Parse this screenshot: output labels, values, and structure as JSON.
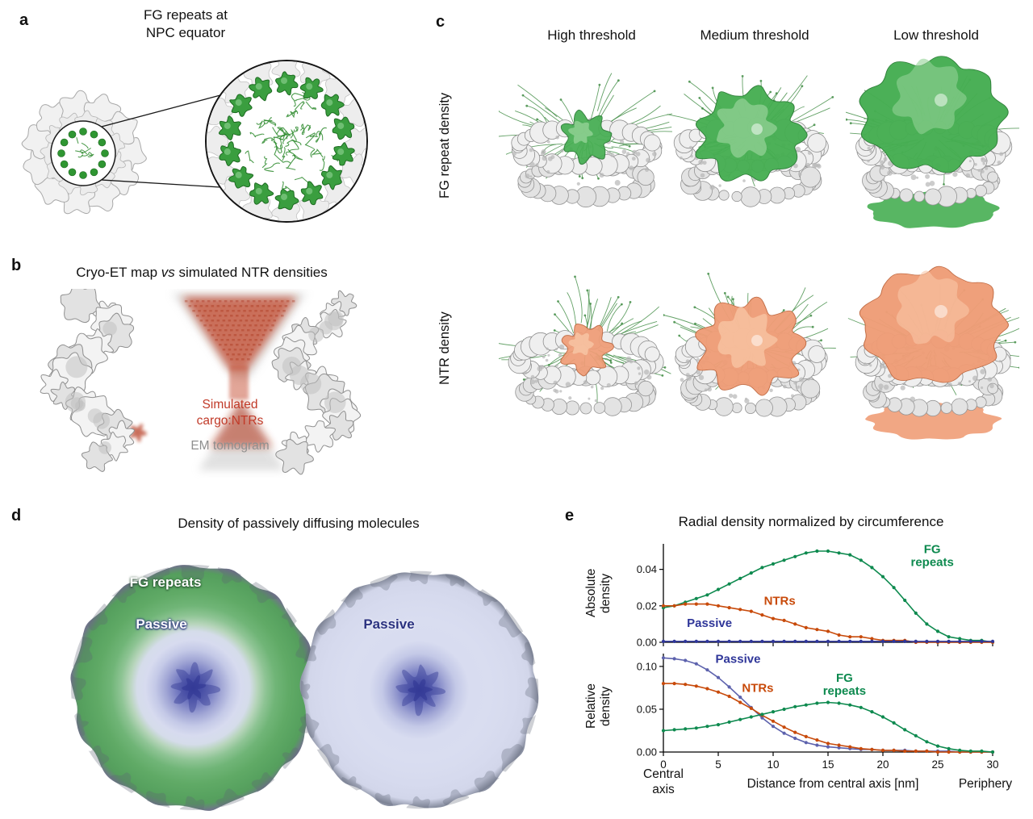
{
  "panel_a": {
    "label": "a",
    "title_line1": "FG repeats at",
    "title_line2": "NPC equator"
  },
  "panel_b": {
    "label": "b",
    "title_pre": "Cryo-ET map ",
    "title_vs": "vs",
    "title_post": " simulated NTR densities",
    "annotation_sim_line1": "Simulated",
    "annotation_sim_line2": "cargo:NTRs",
    "annotation_tomogram": "EM tomogram"
  },
  "panel_c": {
    "label": "c",
    "col_headers": [
      "High threshold",
      "Medium threshold",
      "Low threshold"
    ],
    "row_labels": [
      "FG repeat density",
      "NTR density"
    ]
  },
  "panel_d": {
    "label": "d",
    "title": "Density of passively diffusing molecules",
    "left_disc_label_top": "FG repeats",
    "left_disc_label_center": "Passive",
    "right_disc_label": "Passive"
  },
  "panel_e": {
    "label": "e",
    "title": "Radial density normalized by circumference",
    "ylabel_top_line1": "Absolute",
    "ylabel_top_line2": "density",
    "ylabel_bottom_line1": "Relative",
    "ylabel_bottom_line2": "density",
    "xlabel": "Distance from central axis [nm]",
    "x_origin_label_line1": "Central",
    "x_origin_label_line2": "axis",
    "x_end_label": "Periphery"
  },
  "colors": {
    "fg_green_surface": "#46ae52",
    "fg_green_light": "#93d296",
    "fg_green_dark": "#2a7c35",
    "ntr_orange_surface": "#ef9d77",
    "ntr_orange_light": "#f8c7a6",
    "ntr_orange_dark": "#c06a42",
    "filament_green": "#3c8a40",
    "sim_red": "#c03a1e",
    "tomo_gray": "#9a9a9a",
    "chart_green": "#0e8a4f",
    "chart_red": "#c84a0a",
    "chart_navy": "#2f3699",
    "chart_purple": "#5d62ad",
    "disc_left_stops": [
      [
        0,
        "#3f45a2"
      ],
      [
        0.07,
        "#555cb1"
      ],
      [
        0.15,
        "#7b81c4"
      ],
      [
        0.23,
        "#a3a8d6"
      ],
      [
        0.31,
        "#c4c9e7"
      ],
      [
        0.39,
        "#d7dbef"
      ],
      [
        0.46,
        "#d5dcea"
      ],
      [
        0.52,
        "#b7d5bb"
      ],
      [
        0.59,
        "#8ec494"
      ],
      [
        0.67,
        "#70b577"
      ],
      [
        0.78,
        "#60aa66"
      ],
      [
        0.88,
        "#58a360"
      ],
      [
        0.94,
        "#559e5d"
      ],
      [
        1,
        "#70758a"
      ]
    ],
    "disc_right_stops": [
      [
        0,
        "#3f45a2"
      ],
      [
        0.07,
        "#555cb1"
      ],
      [
        0.15,
        "#7b81c4"
      ],
      [
        0.23,
        "#a3a8d6"
      ],
      [
        0.31,
        "#c4c9e7"
      ],
      [
        0.42,
        "#d8dcf0"
      ],
      [
        0.6,
        "#d9ddf0"
      ],
      [
        0.8,
        "#d6daee"
      ],
      [
        0.93,
        "#d2d6ea"
      ],
      [
        1,
        "#8a90a2"
      ]
    ]
  },
  "chart_data": [
    {
      "type": "line",
      "title": "Radial density normalized by circumference (absolute)",
      "ylabel": "Absolute density",
      "xlabel": "Distance from central axis [nm]",
      "xlim": [
        0,
        30
      ],
      "ylim": [
        0,
        0.054
      ],
      "grid": false,
      "x": [
        0,
        1,
        2,
        3,
        4,
        5,
        6,
        7,
        8,
        9,
        10,
        11,
        12,
        13,
        14,
        15,
        16,
        17,
        18,
        19,
        20,
        21,
        22,
        23,
        24,
        25,
        26,
        27,
        28,
        29,
        30
      ],
      "xticks": [
        0,
        5,
        10,
        15,
        20,
        25,
        30
      ],
      "xtick_labels": [
        "0",
        "5",
        "10",
        "15",
        "20",
        "25",
        "30"
      ],
      "yticks": [
        0,
        0.02,
        0.04
      ],
      "ytick_labels": [
        "0.00",
        "0.02",
        "0.04"
      ],
      "series": [
        {
          "name": "FG repeats",
          "color": "#0e8a4f",
          "y": [
            0.019,
            0.02,
            0.022,
            0.024,
            0.026,
            0.029,
            0.032,
            0.035,
            0.038,
            0.041,
            0.043,
            0.045,
            0.047,
            0.049,
            0.05,
            0.05,
            0.049,
            0.048,
            0.045,
            0.041,
            0.036,
            0.03,
            0.023,
            0.016,
            0.01,
            0.006,
            0.003,
            0.002,
            0.001,
            0.001,
            0.0
          ]
        },
        {
          "name": "NTRs",
          "color": "#c84a0a",
          "y": [
            0.02,
            0.02,
            0.021,
            0.021,
            0.021,
            0.02,
            0.019,
            0.018,
            0.017,
            0.015,
            0.013,
            0.012,
            0.01,
            0.008,
            0.007,
            0.006,
            0.004,
            0.003,
            0.003,
            0.002,
            0.001,
            0.001,
            0.001,
            0.0,
            0.0,
            0.0,
            0.0,
            0.0,
            0.0,
            0.0,
            0.0
          ]
        },
        {
          "name": "Passive",
          "color": "#2f3699",
          "y": [
            0.0005,
            0.0005,
            0.0005,
            0.0005,
            0.0005,
            0.0005,
            0.0005,
            0.0005,
            0.0005,
            0.0005,
            0.0005,
            0.0005,
            0.0005,
            0.0005,
            0.0005,
            0.0005,
            0.0005,
            0.0005,
            0.0005,
            0.0005,
            0.0005,
            0.0005,
            0.0005,
            0.0005,
            0.0005,
            0.0005,
            0.0005,
            0.0005,
            0.0005,
            0.0005,
            0.0005
          ]
        }
      ],
      "annotations": [
        {
          "lines": [
            "FG",
            "repeats"
          ],
          "x": 24.5,
          "y": 0.049,
          "color": "#0e8a4f"
        },
        {
          "lines": [
            "NTRs"
          ],
          "x": 10.6,
          "y": 0.0205,
          "color": "#c84a0a"
        },
        {
          "lines": [
            "Passive"
          ],
          "x": 4.2,
          "y": 0.0085,
          "color": "#2f3699"
        }
      ]
    },
    {
      "type": "line",
      "title": "Radial density normalized by circumference (relative)",
      "ylabel": "Relative density",
      "xlabel": "Distance from central axis [nm]",
      "xlim": [
        0,
        30
      ],
      "ylim": [
        0,
        0.115
      ],
      "grid": false,
      "x": [
        0,
        1,
        2,
        3,
        4,
        5,
        6,
        7,
        8,
        9,
        10,
        11,
        12,
        13,
        14,
        15,
        16,
        17,
        18,
        19,
        20,
        21,
        22,
        23,
        24,
        25,
        26,
        27,
        28,
        29,
        30
      ],
      "xticks": [
        0,
        5,
        10,
        15,
        20,
        25,
        30
      ],
      "xtick_labels": [
        "0",
        "5",
        "10",
        "15",
        "20",
        "25",
        "30"
      ],
      "yticks": [
        0,
        0.05,
        0.1
      ],
      "ytick_labels": [
        "0.00",
        "0.05",
        "0.10"
      ],
      "series": [
        {
          "name": "Passive",
          "color": "#5d62ad",
          "y": [
            0.11,
            0.109,
            0.107,
            0.103,
            0.096,
            0.087,
            0.076,
            0.064,
            0.052,
            0.04,
            0.03,
            0.022,
            0.016,
            0.011,
            0.008,
            0.006,
            0.005,
            0.004,
            0.003,
            0.003,
            0.002,
            0.002,
            0.002,
            0.001,
            0.001,
            0.001,
            0.001,
            0.0,
            0.0,
            0.0,
            0.0
          ]
        },
        {
          "name": "NTRs",
          "color": "#c84a0a",
          "y": [
            0.08,
            0.08,
            0.079,
            0.077,
            0.074,
            0.07,
            0.065,
            0.058,
            0.051,
            0.043,
            0.036,
            0.029,
            0.023,
            0.018,
            0.014,
            0.01,
            0.008,
            0.006,
            0.004,
            0.003,
            0.002,
            0.002,
            0.001,
            0.001,
            0.001,
            0.0,
            0.0,
            0.0,
            0.0,
            0.0,
            0.0
          ]
        },
        {
          "name": "FG repeats",
          "color": "#0e8a4f",
          "y": [
            0.025,
            0.026,
            0.027,
            0.028,
            0.03,
            0.032,
            0.035,
            0.038,
            0.041,
            0.044,
            0.047,
            0.05,
            0.053,
            0.055,
            0.057,
            0.058,
            0.057,
            0.055,
            0.052,
            0.047,
            0.041,
            0.034,
            0.026,
            0.019,
            0.012,
            0.007,
            0.004,
            0.002,
            0.001,
            0.001,
            0.0
          ]
        }
      ],
      "annotations": [
        {
          "lines": [
            "Passive"
          ],
          "x": 6.8,
          "y": 0.104,
          "color": "#2f3699"
        },
        {
          "lines": [
            "NTRs"
          ],
          "x": 8.6,
          "y": 0.07,
          "color": "#c84a0a"
        },
        {
          "lines": [
            "FG",
            "repeats"
          ],
          "x": 16.5,
          "y": 0.082,
          "color": "#0e8a4f"
        }
      ]
    }
  ]
}
